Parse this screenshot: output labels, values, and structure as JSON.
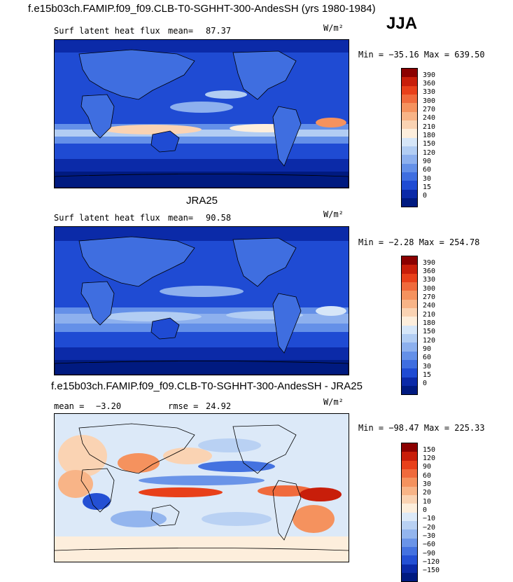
{
  "title_main": "f.e15b03ch.FAMIP.f09_f09.CLB-T0-SGHHT-300-AndesSH (yrs 1980-1984)",
  "season": "JJA",
  "panels": [
    {
      "variable": "Surf latent heat flux",
      "stat1_label": "mean=",
      "stat1_value": "87.37",
      "units": "W/m²",
      "minmax": "Min = −35.16 Max = 639.50",
      "ticks": [
        "390",
        "360",
        "330",
        "300",
        "270",
        "240",
        "210",
        "180",
        "150",
        "120",
        "90",
        "60",
        "30",
        "15",
        "0"
      ],
      "colors": [
        "#8b0000",
        "#c81e0a",
        "#e8401a",
        "#f06a3c",
        "#f5925e",
        "#f8b487",
        "#fad3b3",
        "#fdeedc",
        "#d6e6f8",
        "#b2cdf3",
        "#8db0ee",
        "#6490e8",
        "#3f6ee0",
        "#1f4bd3",
        "#0b2aa8",
        "#001a80"
      ]
    },
    {
      "name": "JRA25",
      "variable": "Surf latent heat flux",
      "stat1_label": "mean=",
      "stat1_value": "90.58",
      "units": "W/m²",
      "minmax": "Min =  −2.28 Max = 254.78",
      "ticks": [
        "390",
        "360",
        "330",
        "300",
        "270",
        "240",
        "210",
        "180",
        "150",
        "120",
        "90",
        "60",
        "30",
        "15",
        "0"
      ],
      "colors": [
        "#8b0000",
        "#c81e0a",
        "#e8401a",
        "#f06a3c",
        "#f5925e",
        "#f8b487",
        "#fad3b3",
        "#fdeedc",
        "#d6e6f8",
        "#b2cdf3",
        "#8db0ee",
        "#6490e8",
        "#3f6ee0",
        "#1f4bd3",
        "#0b2aa8",
        "#001a80"
      ]
    },
    {
      "name": "f.e15b03ch.FAMIP.f09_f09.CLB-T0-SGHHT-300-AndesSH - JRA25",
      "stat1_label": "mean =",
      "stat1_value": "−3.20",
      "stat2_label": "rmse =",
      "stat2_value": "24.92",
      "units": "W/m²",
      "minmax": "Min = −98.47 Max = 225.33",
      "ticks": [
        "150",
        "120",
        "90",
        "60",
        "30",
        "20",
        "10",
        "0",
        "−10",
        "−20",
        "−30",
        "−60",
        "−90",
        "−120",
        "−150"
      ],
      "colors": [
        "#8b0000",
        "#c81e0a",
        "#e8401a",
        "#f06a3c",
        "#f5925e",
        "#f8b487",
        "#fad3b3",
        "#fdeedc",
        "#dce9f8",
        "#b9d1f3",
        "#93b5ee",
        "#6a94e8",
        "#4472e0",
        "#2450d4",
        "#0b2aa8",
        "#001a80"
      ]
    }
  ]
}
